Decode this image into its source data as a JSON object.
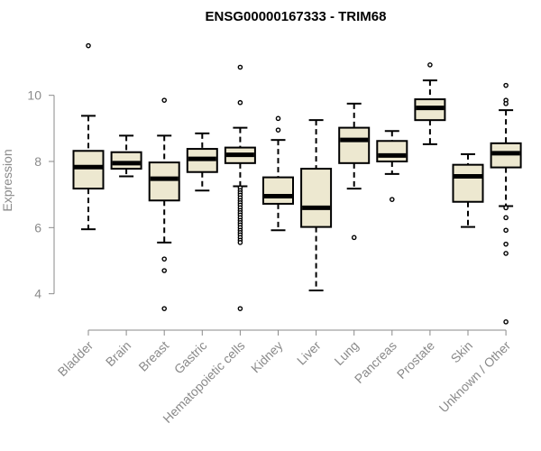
{
  "chart_data": {
    "type": "boxplot",
    "title": "ENSG00000167333 - TRIM68",
    "ylabel": "Expression",
    "xlabel": "",
    "ylim": [
      2.9,
      11.9
    ],
    "yticks": [
      4,
      6,
      8,
      10
    ],
    "box_fill": "#ede8d0",
    "categories": [
      "Bladder",
      "Brain",
      "Breast",
      "Gastric",
      "Hematopoietic cells",
      "Kidney",
      "Liver",
      "Lung",
      "Pancreas",
      "Prostate",
      "Skin",
      "Unknown / Other"
    ],
    "boxes": [
      {
        "q1": 7.18,
        "median": 7.83,
        "q3": 8.32,
        "whisker_low": 5.95,
        "whisker_high": 9.38,
        "outliers": [
          11.5
        ]
      },
      {
        "q1": 7.78,
        "median": 7.95,
        "q3": 8.28,
        "whisker_low": 7.55,
        "whisker_high": 8.78,
        "outliers": []
      },
      {
        "q1": 6.82,
        "median": 7.48,
        "q3": 7.97,
        "whisker_low": 5.55,
        "whisker_high": 8.78,
        "outliers": [
          9.85,
          5.05,
          4.7,
          3.55
        ]
      },
      {
        "q1": 7.68,
        "median": 8.08,
        "q3": 8.38,
        "whisker_low": 7.12,
        "whisker_high": 8.85,
        "outliers": []
      },
      {
        "q1": 7.95,
        "median": 8.2,
        "q3": 8.42,
        "whisker_low": 7.25,
        "whisker_high": 9.02,
        "outliers": [
          10.85,
          9.78,
          7.2,
          7.12,
          7.05,
          6.98,
          6.9,
          6.82,
          6.75,
          6.68,
          6.6,
          6.52,
          6.45,
          6.38,
          6.3,
          6.22,
          6.15,
          6.08,
          6.0,
          5.92,
          5.85,
          5.78,
          5.7,
          5.62,
          5.55,
          3.55
        ]
      },
      {
        "q1": 6.72,
        "median": 6.95,
        "q3": 7.52,
        "whisker_low": 5.92,
        "whisker_high": 8.65,
        "outliers": [
          9.3,
          8.95
        ]
      },
      {
        "q1": 6.02,
        "median": 6.6,
        "q3": 7.78,
        "whisker_low": 4.1,
        "whisker_high": 9.25,
        "outliers": []
      },
      {
        "q1": 7.95,
        "median": 8.65,
        "q3": 9.02,
        "whisker_low": 7.18,
        "whisker_high": 9.75,
        "outliers": [
          5.7
        ]
      },
      {
        "q1": 8.0,
        "median": 8.18,
        "q3": 8.62,
        "whisker_low": 7.62,
        "whisker_high": 8.92,
        "outliers": [
          6.85
        ]
      },
      {
        "q1": 9.25,
        "median": 9.62,
        "q3": 9.88,
        "whisker_low": 8.52,
        "whisker_high": 10.45,
        "outliers": [
          10.92
        ]
      },
      {
        "q1": 6.78,
        "median": 7.55,
        "q3": 7.9,
        "whisker_low": 6.02,
        "whisker_high": 8.22,
        "outliers": []
      },
      {
        "q1": 7.82,
        "median": 8.25,
        "q3": 8.55,
        "whisker_low": 6.65,
        "whisker_high": 9.55,
        "outliers": [
          10.3,
          9.85,
          9.75,
          6.6,
          6.3,
          5.92,
          5.5,
          5.22,
          3.15
        ]
      }
    ]
  }
}
